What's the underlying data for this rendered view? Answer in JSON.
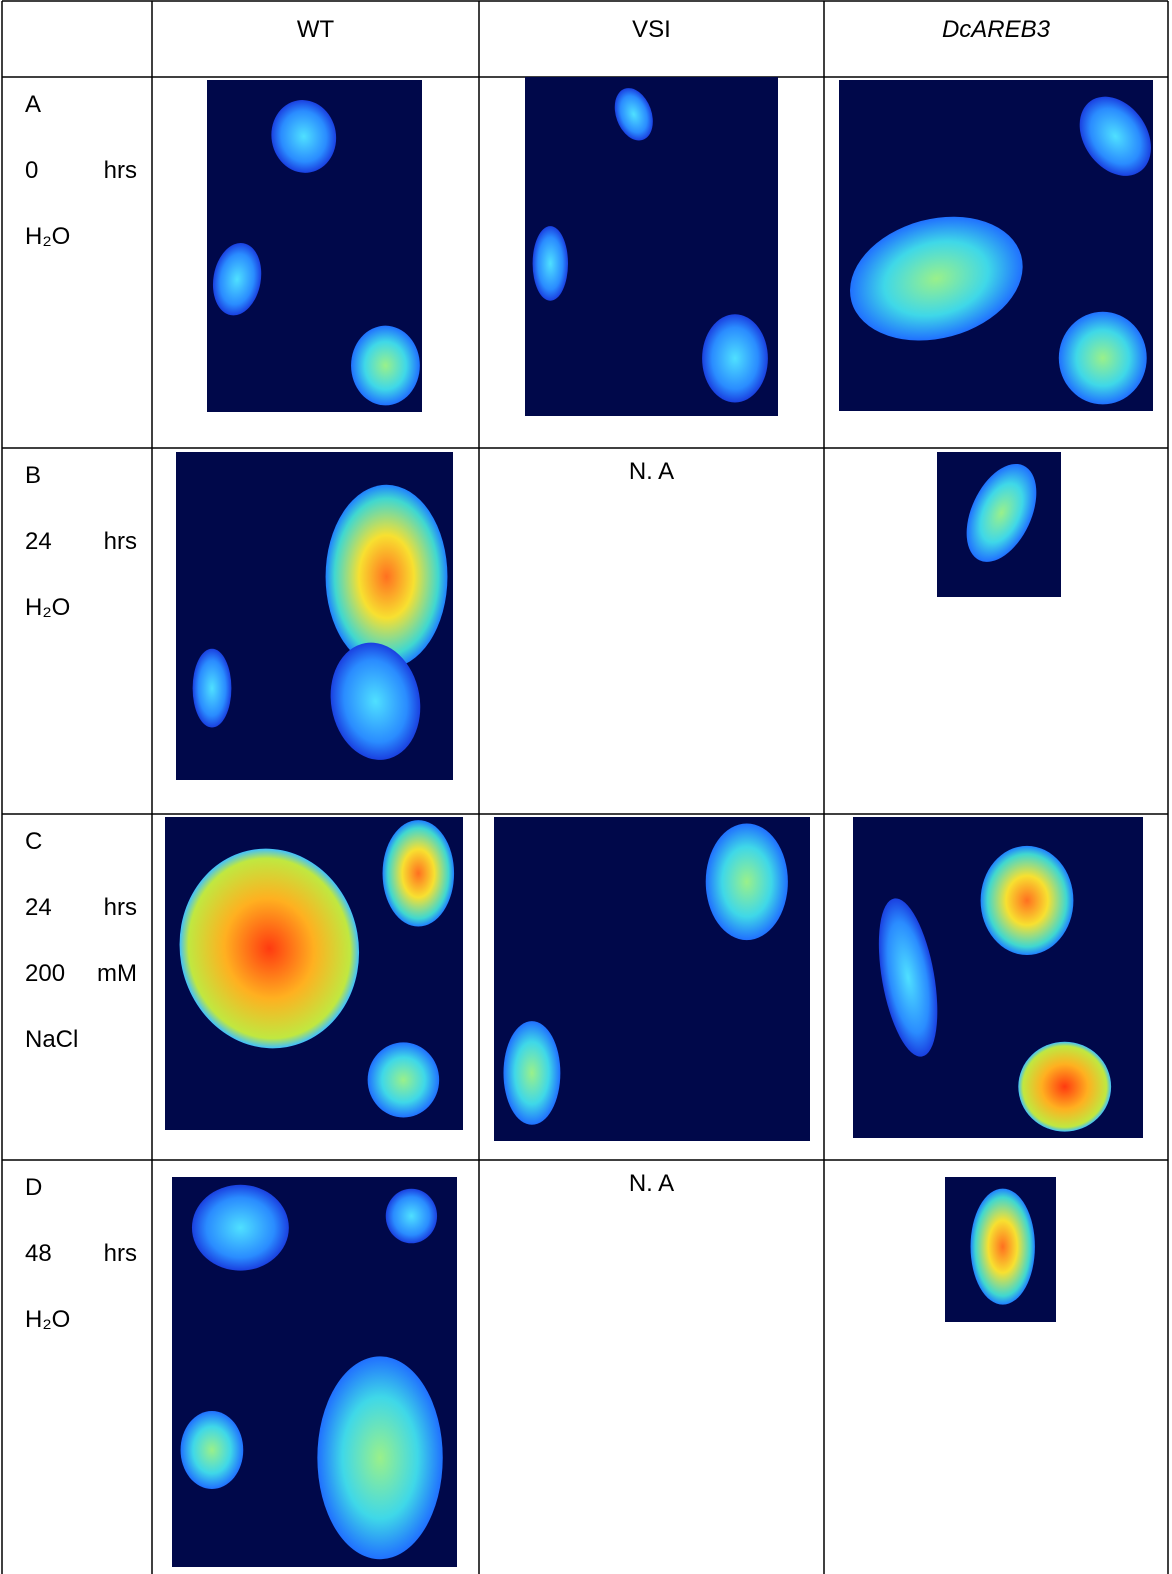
{
  "table": {
    "header": [
      "WT",
      "VSI",
      "DcAREB3"
    ],
    "rows": [
      {
        "lines": [
          "A",
          "0 hrs",
          "H₂O"
        ]
      },
      {
        "lines": [
          "B",
          "24 hrs",
          "H₂O"
        ],
        "vsi": "N. A"
      },
      {
        "lines": [
          "C",
          "24 hrs",
          "200 mM",
          "NaCl"
        ]
      },
      {
        "lines": [
          "D",
          "48 hrs",
          "H₂O"
        ],
        "vsi": "N. A"
      }
    ]
  }
}
